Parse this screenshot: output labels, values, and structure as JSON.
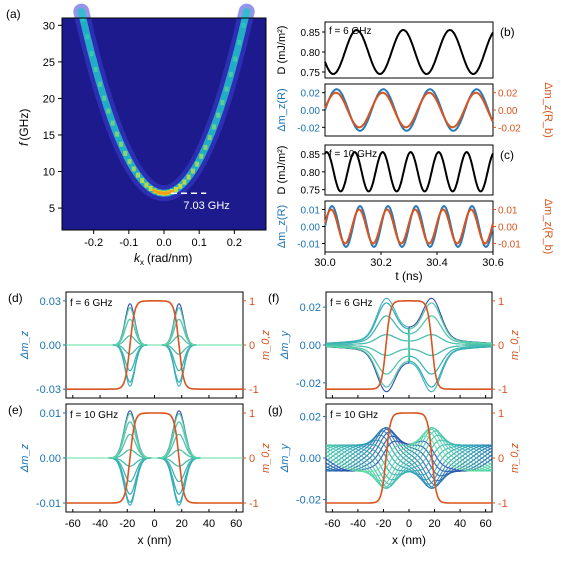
{
  "colors": {
    "black": "#000000",
    "blue_axis": "#1a73b4",
    "orange_axis": "#d9541e",
    "series_blue": "#2a7ab8",
    "series_orange": "#d9541e",
    "heat_bg": "#1c1a8c",
    "heat_low": "#3b3fd6",
    "heat_mid": "#22c3c8",
    "heat_high": "#f0e020",
    "heat_peak": "#ff9a10",
    "profile_dark": "#1f3ca8",
    "profile_mid": "#2aa3b8",
    "profile_light": "#5ee0a0"
  },
  "chart_data": [
    {
      "id": "a",
      "type": "heatmap",
      "panel_label": "(a)",
      "xlabel_main": "k",
      "xlabel_sub": "x",
      "xlabel_unit": "(rad/nm)",
      "ylabel_main": "f",
      "ylabel_unit": "(GHz)",
      "xticks": [
        "-0.2",
        "-0.1",
        "0.0",
        "0.1",
        "0.2"
      ],
      "xtick_values": [
        -0.2,
        -0.1,
        0.0,
        0.1,
        0.2
      ],
      "yticks": [
        "5",
        "10",
        "15",
        "20",
        "25",
        "30"
      ],
      "ytick_values": [
        5,
        10,
        15,
        20,
        25,
        30
      ],
      "xlim": [
        -0.29,
        0.29
      ],
      "ylim": [
        2,
        31
      ],
      "annotation": "7.03 GHz",
      "annotation_value": 7.03,
      "dispersion": {
        "f0": 7.03,
        "curvature": 450
      }
    },
    {
      "id": "b_top",
      "type": "line",
      "panel_label": "(b)",
      "annotation": "f = 6 GHz",
      "ylabel": "D (mJ/m²)",
      "yticks": [
        "0.85",
        "0.80",
        "0.75"
      ],
      "ytick_values": [
        0.85,
        0.8,
        0.75
      ],
      "ylim": [
        0.735,
        0.875
      ],
      "xlim": [
        30.0,
        30.6
      ],
      "series": [
        {
          "color": "black",
          "mean": 0.8,
          "amplitude": 0.055,
          "frequency_ghz": 6,
          "phase": 3.6
        }
      ]
    },
    {
      "id": "b_bottom",
      "type": "line",
      "ylabel_left": "Δm_z(R)",
      "ylabel_right": "Δm_z(R_b)",
      "yticks_left": [
        "0.02",
        "0.00",
        "-0.02"
      ],
      "yticks_right": [
        "0.02",
        "0.00",
        "-0.02"
      ],
      "ytick_values": [
        0.02,
        0.0,
        -0.02
      ],
      "ylim": [
        -0.03,
        0.03
      ],
      "xlim": [
        30.0,
        30.6
      ],
      "series": [
        {
          "color": "series_blue",
          "mean": 0,
          "amplitude": 0.024,
          "frequency_ghz": 6,
          "phase": 0.0
        },
        {
          "color": "series_orange",
          "mean": 0,
          "amplitude": 0.02,
          "frequency_ghz": 6,
          "phase": 0.1
        }
      ]
    },
    {
      "id": "c_top",
      "type": "line",
      "panel_label": "(c)",
      "annotation": "f = 10 GHz",
      "ylabel": "D (mJ/m²)",
      "yticks": [
        "0.85",
        "0.80",
        "0.75"
      ],
      "ytick_values": [
        0.85,
        0.8,
        0.75
      ],
      "ylim": [
        0.735,
        0.875
      ],
      "xlim": [
        30.0,
        30.6
      ],
      "series": [
        {
          "color": "black",
          "mean": 0.8,
          "amplitude": 0.055,
          "frequency_ghz": 10,
          "phase": 1.2
        }
      ]
    },
    {
      "id": "c_bottom",
      "type": "line",
      "ylabel_left": "Δm_z(R)",
      "ylabel_right": "Δm_z(R_b)",
      "xlabel": "t (ns)",
      "xticks": [
        "30.0",
        "30.2",
        "30.4",
        "30.6"
      ],
      "xtick_values": [
        30.0,
        30.2,
        30.4,
        30.6
      ],
      "yticks_left": [
        "0.01",
        "0.00",
        "-0.01"
      ],
      "yticks_right": [
        "0.01",
        "0.00",
        "-0.01"
      ],
      "ytick_values": [
        0.01,
        0.0,
        -0.01
      ],
      "ylim": [
        -0.015,
        0.015
      ],
      "xlim": [
        30.0,
        30.6
      ],
      "series": [
        {
          "color": "series_blue",
          "mean": 0,
          "amplitude": 0.012,
          "frequency_ghz": 10,
          "phase": 0.0
        },
        {
          "color": "series_orange",
          "mean": 0,
          "amplitude": 0.01,
          "frequency_ghz": 10,
          "phase": 0.2
        }
      ]
    },
    {
      "id": "d",
      "type": "line",
      "panel_label": "(d)",
      "annotation": "f = 6 GHz",
      "ylabel_left": "Δm_z",
      "ylabel_right": "m_0,z",
      "yticks_left": [
        "0.03",
        "0.00",
        "-0.03"
      ],
      "ytick_values_left": [
        0.03,
        0.0,
        -0.03
      ],
      "ylim_left": [
        -0.036,
        0.036
      ],
      "yticks_right": [
        "1",
        "0",
        "-1"
      ],
      "ytick_values_right": [
        1,
        0,
        -1
      ],
      "ylim_right": [
        -1.2,
        1.2
      ],
      "xlim": [
        -65,
        65
      ],
      "profile": {
        "kind": "mz",
        "amplitude": 0.028,
        "center": 18,
        "width": 5,
        "lines": 14
      }
    },
    {
      "id": "e",
      "type": "line",
      "panel_label": "(e)",
      "annotation": "f = 10 GHz",
      "ylabel_left": "Δm_z",
      "ylabel_right": "m_0,z",
      "xlabel": "x (nm)",
      "xticks": [
        "-60",
        "-40",
        "-20",
        "0",
        "20",
        "40",
        "60"
      ],
      "xtick_values": [
        -60,
        -40,
        -20,
        0,
        20,
        40,
        60
      ],
      "yticks_left": [
        "0.01",
        "0.00",
        "-0.01"
      ],
      "ytick_values_left": [
        0.01,
        0.0,
        -0.01
      ],
      "ylim_left": [
        -0.012,
        0.012
      ],
      "yticks_right": [
        "1",
        "0",
        "-1"
      ],
      "ytick_values_right": [
        1,
        0,
        -1
      ],
      "ylim_right": [
        -1.2,
        1.2
      ],
      "xlim": [
        -65,
        65
      ],
      "profile": {
        "kind": "mz",
        "amplitude": 0.0105,
        "center": 18,
        "width": 6,
        "lines": 18
      }
    },
    {
      "id": "f",
      "type": "line",
      "panel_label": "(f)",
      "annotation": "f = 6 GHz",
      "ylabel_left": "Δm_y",
      "ylabel_right": "m_0,z",
      "yticks_left": [
        "0.02",
        "0.00",
        "-0.02"
      ],
      "ytick_values_left": [
        0.02,
        0.0,
        -0.02
      ],
      "ylim_left": [
        -0.028,
        0.028
      ],
      "yticks_right": [
        "1",
        "0",
        "-1"
      ],
      "ytick_values_right": [
        1,
        0,
        -1
      ],
      "ylim_right": [
        -1.2,
        1.2
      ],
      "xlim": [
        -65,
        65
      ],
      "profile": {
        "kind": "my6",
        "amplitude": 0.022,
        "center": 18,
        "width": 10,
        "lines": 14
      }
    },
    {
      "id": "g",
      "type": "line",
      "panel_label": "(g)",
      "annotation": "f = 10 GHz",
      "ylabel_left": "Δm_y",
      "ylabel_right": "m_0,z",
      "xlabel": "x (nm)",
      "xticks": [
        "-60",
        "-40",
        "-20",
        "0",
        "20",
        "40",
        "60"
      ],
      "xtick_values": [
        -60,
        -40,
        -20,
        0,
        20,
        40,
        60
      ],
      "yticks_left": [
        "0.02",
        "0.00",
        "-0.02"
      ],
      "ytick_values_left": [
        0.02,
        0.0,
        -0.02
      ],
      "ylim_left": [
        -0.026,
        0.026
      ],
      "yticks_right": [
        "1",
        "0",
        "-1"
      ],
      "ytick_values_right": [
        1,
        0,
        -1
      ],
      "ylim_right": [
        -1.2,
        1.2
      ],
      "xlim": [
        -65,
        65
      ],
      "profile": {
        "kind": "my10",
        "amplitude": 0.014,
        "center": 18,
        "width": 10,
        "lines": 20
      }
    }
  ]
}
